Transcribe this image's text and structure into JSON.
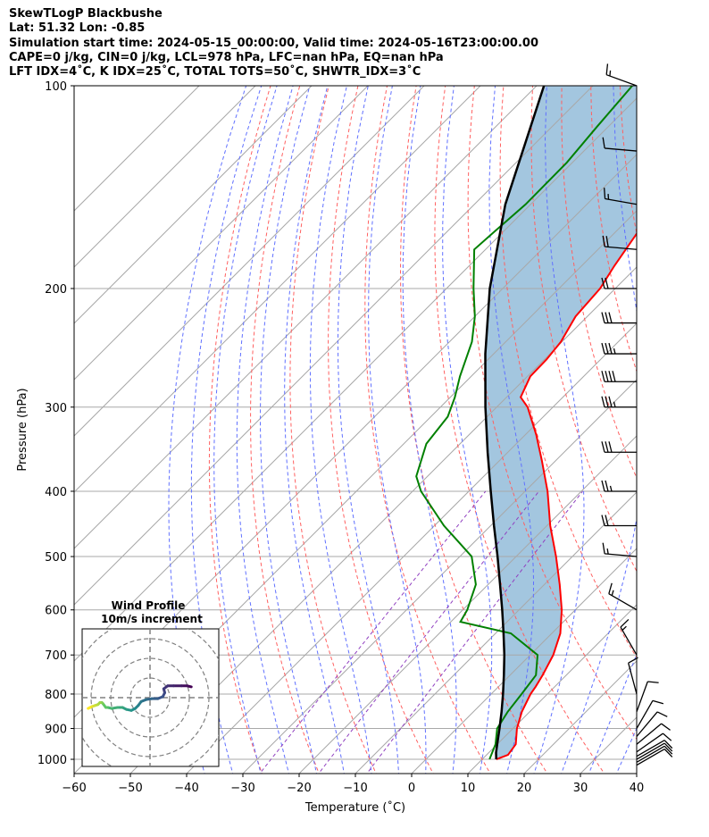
{
  "header": {
    "line1": "SkewTLogP Blackbushe",
    "line2": "Lat: 51.32   Lon: -0.85",
    "line3": "Simulation start time: 2024-05-15_00:00:00, Valid time: 2024-05-16T23:00:00.00",
    "line4": "CAPE=0 j/kg, CIN=0 j/kg, LCL=978 hPa, LFC=nan hPa, EQ=nan hPa",
    "line5": "LFT IDX=4˚C, K IDX=25˚C, TOTAL TOTS=50˚C, SHWTR_IDX=3˚C"
  },
  "colors": {
    "temperature": "#ff0000",
    "dewpoint": "#008000",
    "parcel": "#000000",
    "fill": "#a3c6df",
    "dry_adiabat": "#ff6060",
    "moist_adiabat": "#6070ff",
    "mixing_ratio": "#9040c0",
    "isotherm": "#a8a8a8",
    "hodo_colors": [
      "#440154",
      "#3b528b",
      "#21918c",
      "#5ec962",
      "#fde725"
    ]
  },
  "chart_data": {
    "type": "line",
    "subtype": "skew-t log-p",
    "xlabel": "Temperature (˚C)",
    "ylabel": "Pressure (hPa)",
    "xlim": [
      -60,
      40
    ],
    "ylim": [
      1050,
      100
    ],
    "yscale": "log",
    "skew_deg": 45,
    "x_ticks": [
      "−60",
      "−50",
      "−40",
      "−30",
      "−20",
      "−10",
      "0",
      "10",
      "20",
      "30",
      "40"
    ],
    "x_tick_values": [
      -60,
      -50,
      -40,
      -30,
      -20,
      -10,
      0,
      10,
      20,
      30,
      40
    ],
    "y_ticks": [
      "100",
      "200",
      "300",
      "400",
      "500",
      "600",
      "700",
      "800",
      "900",
      "1000"
    ],
    "y_tick_values": [
      100,
      200,
      300,
      400,
      500,
      600,
      700,
      800,
      900,
      1000
    ],
    "grid": true,
    "series": [
      {
        "key": "temperature",
        "p": [
          1000,
          985,
          950,
          900,
          850,
          800,
          780,
          750,
          700,
          650,
          600,
          550,
          500,
          450,
          400,
          360,
          330,
          300,
          290,
          270,
          255,
          240,
          220,
          200,
          185,
          160,
          140,
          130,
          115,
          105,
          100
        ],
        "t": [
          12.5,
          13.8,
          13.3,
          10.7,
          8.6,
          7.0,
          6.6,
          5.8,
          4.1,
          1.5,
          -2.4,
          -7.3,
          -12.9,
          -19.4,
          -26.0,
          -32.5,
          -38.0,
          -44.5,
          -47.5,
          -49.5,
          -49.6,
          -50.2,
          -52.1,
          -52.7,
          -54.2,
          -56.5,
          -58.8,
          -60.5,
          -63.2,
          -65.2,
          -66.0
        ]
      },
      {
        "key": "dewpoint",
        "p": [
          1000,
          950,
          900,
          850,
          800,
          750,
          700,
          650,
          625,
          600,
          550,
          500,
          450,
          400,
          380,
          340,
          310,
          290,
          270,
          240,
          220,
          200,
          175,
          165,
          150,
          130,
          115,
          100
        ],
        "t": [
          11.3,
          9.7,
          7.2,
          6.1,
          5.4,
          4.6,
          1.3,
          -7.3,
          -18.3,
          -19.2,
          -22.2,
          -27.9,
          -38.3,
          -48.5,
          -52.0,
          -56.0,
          -57.0,
          -59.2,
          -62.0,
          -66.0,
          -70.0,
          -75.2,
          -82.0,
          -81.6,
          -80.9,
          -81.0,
          -82.0,
          -83.0
        ]
      },
      {
        "key": "parcel",
        "p": [
          1000,
          985,
          978,
          950,
          900,
          850,
          800,
          750,
          700,
          650,
          600,
          550,
          500,
          450,
          400,
          350,
          300,
          250,
          200,
          150,
          100
        ],
        "t": [
          12.5,
          11.7,
          11.3,
          10.0,
          7.6,
          5.0,
          2.1,
          -1.1,
          -4.6,
          -8.6,
          -13.0,
          -17.9,
          -23.3,
          -29.4,
          -36.1,
          -43.6,
          -52.0,
          -61.5,
          -72.3,
          -84.5,
          -98.7
        ]
      }
    ],
    "wind_barbs": [
      {
        "p": 100,
        "speed_kt": 15,
        "dir_deg": 290
      },
      {
        "p": 125,
        "speed_kt": 10,
        "dir_deg": 275
      },
      {
        "p": 150,
        "speed_kt": 15,
        "dir_deg": 280
      },
      {
        "p": 175,
        "speed_kt": 20,
        "dir_deg": 275
      },
      {
        "p": 200,
        "speed_kt": 20,
        "dir_deg": 270
      },
      {
        "p": 225,
        "speed_kt": 30,
        "dir_deg": 270
      },
      {
        "p": 250,
        "speed_kt": 35,
        "dir_deg": 270
      },
      {
        "p": 275,
        "speed_kt": 40,
        "dir_deg": 270
      },
      {
        "p": 300,
        "speed_kt": 35,
        "dir_deg": 270
      },
      {
        "p": 350,
        "speed_kt": 30,
        "dir_deg": 270
      },
      {
        "p": 400,
        "speed_kt": 25,
        "dir_deg": 270
      },
      {
        "p": 450,
        "speed_kt": 20,
        "dir_deg": 270
      },
      {
        "p": 500,
        "speed_kt": 15,
        "dir_deg": 275
      },
      {
        "p": 600,
        "speed_kt": 15,
        "dir_deg": 300
      },
      {
        "p": 700,
        "speed_kt": 15,
        "dir_deg": 330
      },
      {
        "p": 800,
        "speed_kt": 10,
        "dir_deg": 345
      },
      {
        "p": 850,
        "speed_kt": 10,
        "dir_deg": 20
      },
      {
        "p": 900,
        "speed_kt": 10,
        "dir_deg": 30
      },
      {
        "p": 925,
        "speed_kt": 10,
        "dir_deg": 40
      },
      {
        "p": 950,
        "speed_kt": 10,
        "dir_deg": 50
      },
      {
        "p": 975,
        "speed_kt": 10,
        "dir_deg": 55
      },
      {
        "p": 990,
        "speed_kt": 10,
        "dir_deg": 60
      },
      {
        "p": 1000,
        "speed_kt": 10,
        "dir_deg": 60
      },
      {
        "p": 1010,
        "speed_kt": 10,
        "dir_deg": 60
      },
      {
        "p": 1020,
        "speed_kt": 10,
        "dir_deg": 60
      }
    ],
    "hodograph": {
      "title_line1": "Wind Profile",
      "title_line2": "10m/s increment",
      "rings_ms": [
        10,
        20,
        30,
        40
      ],
      "u": [
        21.0,
        19.0,
        16.0,
        12.0,
        9.0,
        7.0,
        7.5,
        6.5,
        4.0,
        1.0,
        -2.0,
        -4.5,
        -6.0,
        -7.5,
        -9.5,
        -12.0,
        -14.0,
        -16.5,
        -19.5,
        -21.5,
        -22.5,
        -24.0,
        -24.5,
        -25.5,
        -26.5,
        -28.0,
        -29.5,
        -30.5,
        -31.5
      ],
      "v": [
        5.5,
        6.0,
        6.0,
        6.0,
        6.0,
        4.5,
        2.5,
        0.5,
        -0.5,
        -0.5,
        -1.0,
        -2.0,
        -4.0,
        -5.5,
        -6.5,
        -6.0,
        -5.0,
        -5.0,
        -5.5,
        -5.0,
        -5.0,
        -3.0,
        -2.5,
        -2.5,
        -3.5,
        -4.0,
        -4.5,
        -5.0,
        -5.5
      ]
    }
  }
}
